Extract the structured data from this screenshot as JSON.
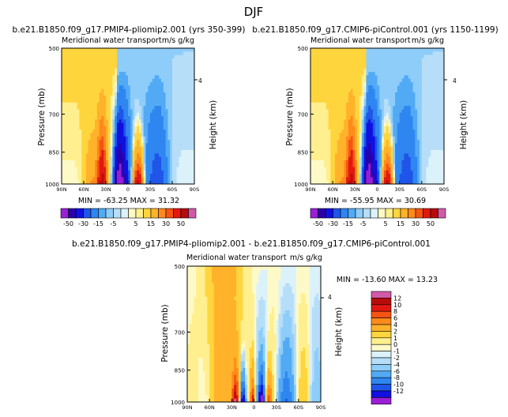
{
  "page_title": "DJF",
  "colors": {
    "neg": [
      "#9b1fd6",
      "#2a00a8",
      "#1010e0",
      "#1f55e8",
      "#2f86f0",
      "#52aaf5",
      "#8ecdfa",
      "#b7def8",
      "#dcf2fb"
    ],
    "pos": [
      "#fdfac8",
      "#ffef8e",
      "#ffd53e",
      "#ffb22a",
      "#ff8a1c",
      "#f65412",
      "#e21810",
      "#b80c0c",
      "#d05aa8"
    ]
  },
  "chart_data": [
    {
      "type": "heatmap",
      "title": "b.e21.B1850.f09_g17.PMIP4-pliomip2.001 (yrs 350-399)",
      "subtitle": "Meridional water transport",
      "units": "m/s g/kg",
      "ylabel": "Pressure (mb)",
      "y2label": "Height (km)",
      "y2ticks": [
        "4"
      ],
      "x_ticks": [
        "90N",
        "60N",
        "30N",
        "0",
        "30S",
        "60S",
        "90S"
      ],
      "y_ticks": [
        "500",
        "700",
        "850",
        "1000"
      ],
      "stats": "MIN = -63.25   MAX =  31.32",
      "colorbar": [
        "-50",
        "-30",
        "-15",
        "-5",
        "5",
        "15",
        "30",
        "50"
      ]
    },
    {
      "type": "heatmap",
      "title": "b.e21.B1850.f09_g17.CMIP6-piControl.001 (yrs 1150-1199)",
      "subtitle": "Meridional water transport",
      "units": "m/s g/kg",
      "ylabel": "Pressure (mb)",
      "y2label": "Height (km)",
      "y2ticks": [
        "4"
      ],
      "x_ticks": [
        "90N",
        "60N",
        "30N",
        "0",
        "30S",
        "60S",
        "90S"
      ],
      "y_ticks": [
        "500",
        "700",
        "850",
        "1000"
      ],
      "stats": "MIN = -55.95   MAX =  30.69",
      "colorbar": [
        "-50",
        "-30",
        "-15",
        "-5",
        "5",
        "15",
        "30",
        "50"
      ]
    },
    {
      "type": "heatmap",
      "title": "b.e21.B1850.f09_g17.PMIP4-pliomip2.001 - b.e21.B1850.f09_g17.CMIP6-piControl.001",
      "subtitle": "Meridional water transport",
      "units": "m/s g/kg",
      "ylabel": "Pressure (mb)",
      "y2label": "Height (km)",
      "y2ticks": [
        "4"
      ],
      "x_ticks": [
        "90N",
        "60N",
        "30N",
        "0",
        "30S",
        "60S",
        "90S"
      ],
      "y_ticks": [
        "500",
        "700",
        "850",
        "1000"
      ],
      "stats": "MIN = -13.60   MAX =  13.23",
      "colorbar": [
        "12",
        "10",
        "8",
        "6",
        "4",
        "2",
        "1",
        "0",
        "-1",
        "-2",
        "-4",
        "-6",
        "-8",
        "-10",
        "-12"
      ]
    }
  ]
}
